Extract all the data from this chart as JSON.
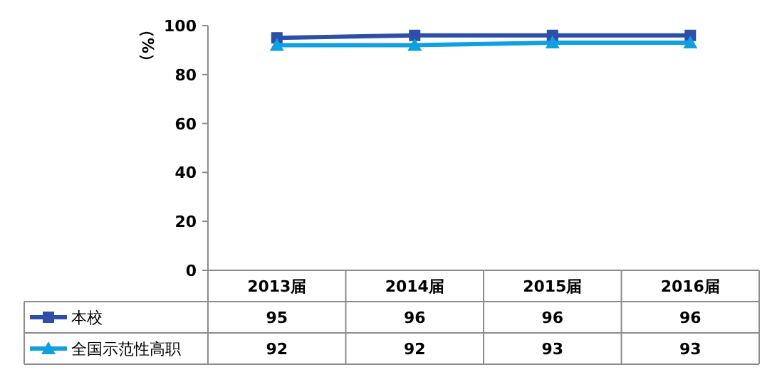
{
  "chart_data": {
    "type": "line",
    "ylabel": "（%）",
    "categories": [
      "2013届",
      "2014届",
      "2015届",
      "2016届"
    ],
    "series": [
      {
        "name": "本校",
        "color": "#2e4fa8",
        "marker": "square",
        "values": [
          95,
          96,
          96,
          96
        ]
      },
      {
        "name": "全国示范性高职",
        "color": "#0ea0e0",
        "marker": "triangle",
        "values": [
          92,
          92,
          93,
          93
        ]
      }
    ],
    "ylim": [
      0,
      100
    ],
    "yticks": [
      0,
      20,
      40,
      60,
      80,
      100
    ],
    "data_labels": true,
    "legend": "bottom left",
    "grid": false
  }
}
